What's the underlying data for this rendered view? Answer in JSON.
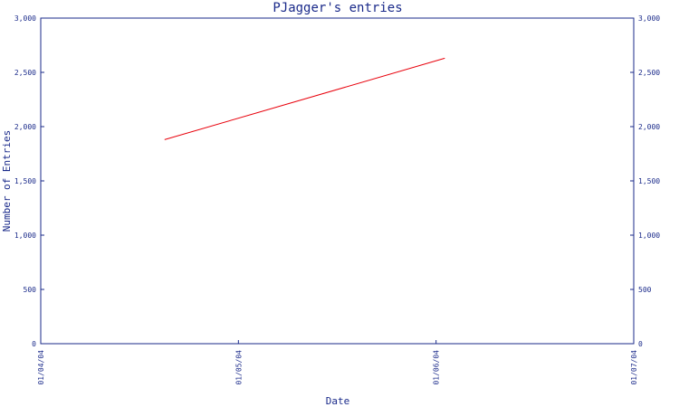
{
  "chart_data": {
    "type": "line",
    "title": "PJagger's entries",
    "xlabel": "Date",
    "ylabel": "Number of Entries",
    "x_tick_labels": [
      "01/04/04",
      "01/05/04",
      "01/06/04",
      "01/07/04"
    ],
    "y_tick_labels": [
      "0",
      "500",
      "1,000",
      "1,500",
      "2,000",
      "2,500",
      "3,000"
    ],
    "y_tick_values": [
      0,
      500,
      1000,
      1500,
      2000,
      2500,
      3000
    ],
    "xlim": [
      "2004-04-01",
      "2004-07-01"
    ],
    "ylim": [
      0,
      3000
    ],
    "grid": false,
    "right_axis_mirrors_left": true,
    "series": [
      {
        "color": "#e8000b",
        "x": [
          "2004-04-20",
          "2004-06-02"
        ],
        "y": [
          1880,
          2630
        ]
      }
    ]
  }
}
